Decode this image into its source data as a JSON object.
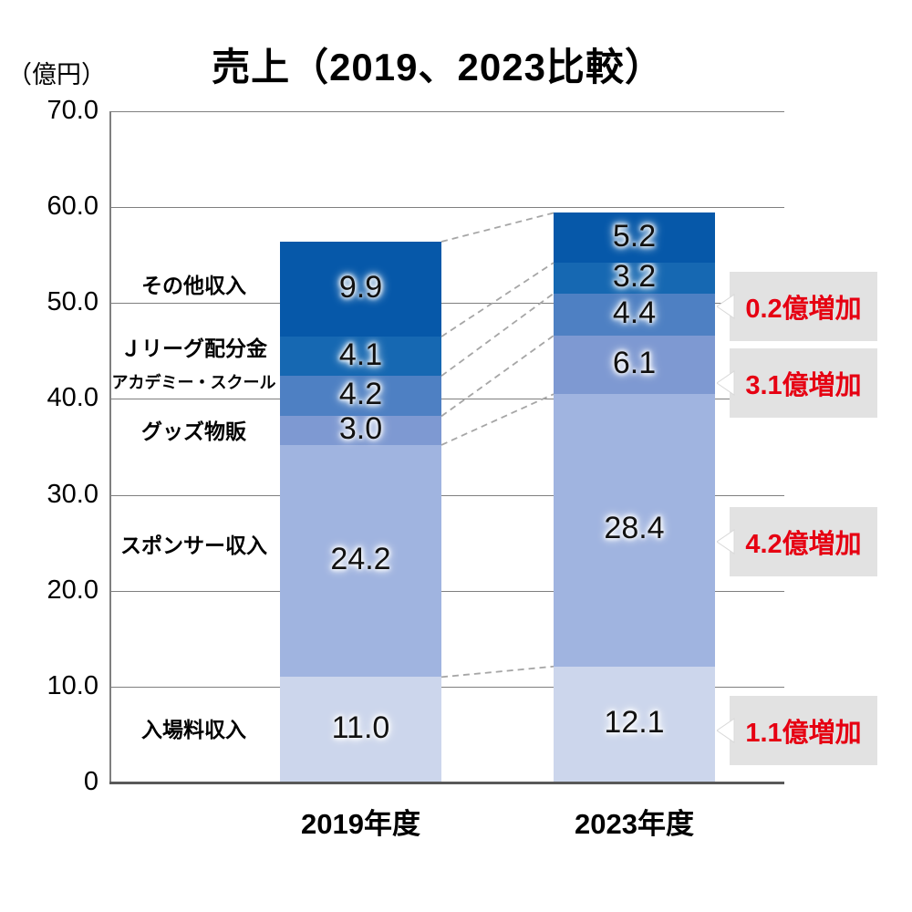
{
  "title": "売上（2019、2023比較）",
  "unit_label": "（億円）",
  "chart_data": {
    "type": "bar",
    "stacked": true,
    "title": "売上（2019、2023比較）",
    "ylabel": "（億円）",
    "ylim": [
      0,
      70
    ],
    "ytick_step": 10,
    "ytick_labels": [
      "0",
      "10.0",
      "20.0",
      "30.0",
      "40.0",
      "50.0",
      "60.0",
      "70.0"
    ],
    "grid": true,
    "categories": [
      "2019年度",
      "2023年度"
    ],
    "totals": [
      56.4,
      59.4
    ],
    "segments": [
      {
        "name": "入場料収入",
        "color": "#ccd6ec",
        "values": [
          11.0,
          12.1
        ]
      },
      {
        "name": "スポンサー収入",
        "color": "#a0b4e0",
        "values": [
          24.2,
          28.4
        ]
      },
      {
        "name": "グッズ物販",
        "color": "#7e99d2",
        "values": [
          3.0,
          6.1
        ]
      },
      {
        "name": "アカデミー・スクール",
        "color": "#4e80c3",
        "values": [
          4.2,
          4.4
        ]
      },
      {
        "name": "Ｊリーグ配分金",
        "color": "#1668b2",
        "values": [
          4.1,
          3.2
        ]
      },
      {
        "name": "その他収入",
        "color": "#0658a9",
        "values": [
          9.9,
          5.2
        ]
      }
    ],
    "annotations": [
      {
        "label": "0.2億増加",
        "target": "アカデミー・スクール"
      },
      {
        "label": "3.1億増加",
        "target": "グッズ物販"
      },
      {
        "label": "4.2億増加",
        "target": "スポンサー収入"
      },
      {
        "label": "1.1億増加",
        "target": "入場料収入"
      }
    ],
    "colors": {
      "annotation_text": "#e60012",
      "annotation_bg": "#e2e2e2",
      "gridline": "#7f7f7f",
      "axis": "#595959",
      "connector": "#a6a6a6",
      "value_text": "#111111"
    },
    "connector_style": "dashed",
    "legend": "none"
  }
}
